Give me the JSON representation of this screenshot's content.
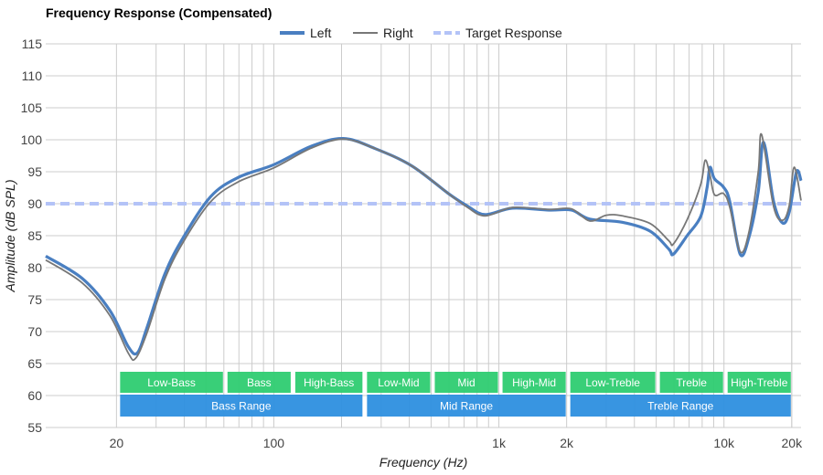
{
  "chart_data": {
    "type": "line",
    "title": "Frequency Response (Compensated)",
    "xlabel": "Frequency (Hz)",
    "ylabel": "Amplitude (dB SPL)",
    "xscale": "log",
    "xlim": [
      9.7,
      22000
    ],
    "ylim": [
      55,
      115
    ],
    "yticks": [
      55,
      60,
      65,
      70,
      75,
      80,
      85,
      90,
      95,
      100,
      105,
      110,
      115
    ],
    "xticks": [
      {
        "value": 20,
        "label": "20"
      },
      {
        "value": 100,
        "label": "100"
      },
      {
        "value": 1000,
        "label": "1k"
      },
      {
        "value": 2000,
        "label": "2k"
      },
      {
        "value": 10000,
        "label": "10k"
      },
      {
        "value": 20000,
        "label": "20k"
      }
    ],
    "grid": true,
    "legend_position": "top-center",
    "colors": {
      "left": "#4a7fc1",
      "right": "#777777",
      "target": "#b3c3f7",
      "band_green": "#2ecc71",
      "band_blue": "#2d8fdf"
    },
    "series": [
      {
        "name": "Left",
        "points": [
          [
            9.7,
            81.8
          ],
          [
            14.1,
            78.3
          ],
          [
            18.7,
            73.3
          ],
          [
            22.6,
            67.6
          ],
          [
            24.8,
            66.7
          ],
          [
            27.2,
            70.4
          ],
          [
            32.8,
            79
          ],
          [
            39.6,
            84.7
          ],
          [
            52.4,
            91.1
          ],
          [
            69.4,
            94.1
          ],
          [
            100,
            96.1
          ],
          [
            147,
            99
          ],
          [
            204,
            100.2
          ],
          [
            283,
            98.6
          ],
          [
            411,
            95.9
          ],
          [
            596,
            91.6
          ],
          [
            720,
            89.7
          ],
          [
            867,
            88.3
          ],
          [
            1150,
            89.3
          ],
          [
            1670,
            89
          ],
          [
            2100,
            89
          ],
          [
            2530,
            87.6
          ],
          [
            3530,
            87.1
          ],
          [
            4700,
            85.7
          ],
          [
            5690,
            82.9
          ],
          [
            5960,
            82.1
          ],
          [
            6860,
            85
          ],
          [
            7880,
            88
          ],
          [
            8420,
            92.6
          ],
          [
            8660,
            95.7
          ],
          [
            9070,
            93.9
          ],
          [
            9950,
            92.6
          ],
          [
            10600,
            90.4
          ],
          [
            11800,
            82.1
          ],
          [
            12900,
            84.7
          ],
          [
            14200,
            91.9
          ],
          [
            15000,
            99.6
          ],
          [
            16600,
            90.4
          ],
          [
            18200,
            87
          ],
          [
            19500,
            88.7
          ],
          [
            21000,
            95
          ],
          [
            22000,
            93.6
          ]
        ]
      },
      {
        "name": "Right",
        "points": [
          [
            9.7,
            81.2
          ],
          [
            14.1,
            77.6
          ],
          [
            18.7,
            72.5
          ],
          [
            22.6,
            66.6
          ],
          [
            24.3,
            65.8
          ],
          [
            27.2,
            69.6
          ],
          [
            32.8,
            78.2
          ],
          [
            39.6,
            84
          ],
          [
            52.4,
            90.3
          ],
          [
            69.4,
            93.4
          ],
          [
            100,
            95.6
          ],
          [
            147,
            98.7
          ],
          [
            204,
            100.1
          ],
          [
            283,
            98.6
          ],
          [
            411,
            95.9
          ],
          [
            596,
            91.6
          ],
          [
            720,
            89.5
          ],
          [
            867,
            88.1
          ],
          [
            1150,
            89.4
          ],
          [
            1670,
            89.1
          ],
          [
            2100,
            89.2
          ],
          [
            2530,
            87.3
          ],
          [
            3000,
            88.2
          ],
          [
            3530,
            88.1
          ],
          [
            4700,
            86.9
          ],
          [
            5690,
            84.2
          ],
          [
            5960,
            83.7
          ],
          [
            6860,
            87.5
          ],
          [
            7880,
            93
          ],
          [
            8250,
            96.8
          ],
          [
            8660,
            94.5
          ],
          [
            9070,
            91.4
          ],
          [
            9950,
            91.6
          ],
          [
            10600,
            89.5
          ],
          [
            11800,
            82.5
          ],
          [
            12900,
            85.5
          ],
          [
            14200,
            95
          ],
          [
            14700,
            100.8
          ],
          [
            16600,
            89.6
          ],
          [
            18200,
            87.4
          ],
          [
            19500,
            89.7
          ],
          [
            20500,
            95.7
          ],
          [
            22000,
            90.5
          ]
        ]
      },
      {
        "name": "Target Response",
        "points": [
          [
            9.7,
            90
          ],
          [
            22000,
            90
          ]
        ]
      }
    ],
    "bands": [
      {
        "label": "Low-Bass",
        "from": 20,
        "to": 60,
        "row": "sub"
      },
      {
        "label": "Bass",
        "from": 60,
        "to": 120,
        "row": "sub"
      },
      {
        "label": "High-Bass",
        "from": 120,
        "to": 250,
        "row": "sub"
      },
      {
        "label": "Low-Mid",
        "from": 250,
        "to": 500,
        "row": "sub"
      },
      {
        "label": "Mid",
        "from": 500,
        "to": 1000,
        "row": "sub"
      },
      {
        "label": "High-Mid",
        "from": 1000,
        "to": 2000,
        "row": "sub"
      },
      {
        "label": "Low-Treble",
        "from": 2000,
        "to": 5000,
        "row": "sub"
      },
      {
        "label": "Treble",
        "from": 5000,
        "to": 10000,
        "row": "sub"
      },
      {
        "label": "High-Treble",
        "from": 10000,
        "to": 20000,
        "row": "sub"
      },
      {
        "label": "Bass Range",
        "from": 20,
        "to": 250,
        "row": "range"
      },
      {
        "label": "Mid Range",
        "from": 250,
        "to": 2000,
        "row": "range"
      },
      {
        "label": "Treble Range",
        "from": 2000,
        "to": 20000,
        "row": "range"
      }
    ]
  }
}
